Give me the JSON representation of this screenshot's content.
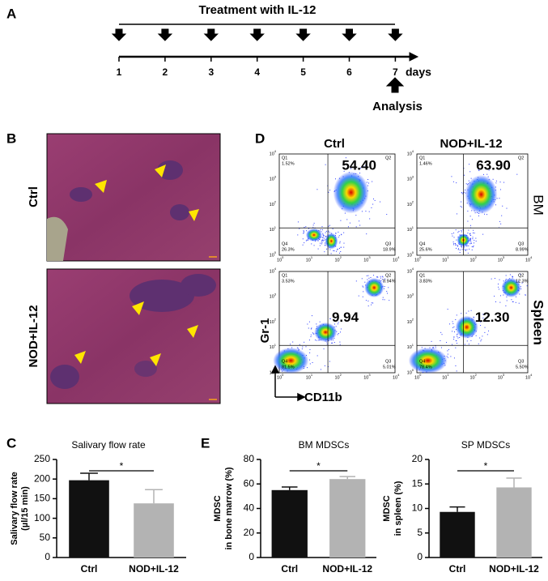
{
  "panel_labels": [
    "A",
    "B",
    "C",
    "D",
    "E"
  ],
  "timeline": {
    "title": "Treatment with IL-12",
    "days": [
      "1",
      "2",
      "3",
      "4",
      "5",
      "6",
      "7"
    ],
    "unit": "days",
    "analysis": "Analysis"
  },
  "histology": {
    "rows": [
      "Ctrl",
      "NOD+IL-12"
    ]
  },
  "flow": {
    "columns": [
      "Ctrl",
      "NOD+IL-12"
    ],
    "rows": [
      "BM",
      "Spleen"
    ],
    "y_label": "Gr-1",
    "x_label": "CD11b",
    "ticks": [
      {
        "base": "10",
        "exp": "0"
      },
      {
        "base": "10",
        "exp": "1"
      },
      {
        "base": "10",
        "exp": "2"
      },
      {
        "base": "10",
        "exp": "3"
      },
      {
        "base": "10",
        "exp": "4"
      }
    ],
    "plots": [
      {
        "main": "54.40",
        "quadrants": [
          {
            "q": "Q1",
            "pct": "1.52%"
          },
          {
            "q": "Q2"
          },
          {
            "q": "Q3",
            "pct": "18.9%"
          },
          {
            "q": "Q4",
            "pct": "26.3%"
          }
        ]
      },
      {
        "main": "63.90",
        "quadrants": [
          {
            "q": "Q1",
            "pct": "1.46%"
          },
          {
            "q": "Q2"
          },
          {
            "q": "Q3",
            "pct": "8.99%"
          },
          {
            "q": "Q4",
            "pct": "25.6%"
          }
        ]
      },
      {
        "main": "9.94",
        "quadrants": [
          {
            "q": "Q1",
            "pct": "3.53%"
          },
          {
            "q": "Q2",
            "pct": "9.94%"
          },
          {
            "q": "Q3",
            "pct": "5.01%"
          },
          {
            "q": "Q4",
            "pct": "81.5%"
          }
        ]
      },
      {
        "main": "12.30",
        "quadrants": [
          {
            "q": "Q1",
            "pct": "3.83%"
          },
          {
            "q": "Q2",
            "pct": "12.3%"
          },
          {
            "q": "Q3",
            "pct": "5.50%"
          },
          {
            "q": "Q4",
            "pct": "78.4%"
          }
        ]
      }
    ]
  },
  "chart_data": [
    {
      "type": "bar",
      "title": "Salivary flow rate",
      "y_label": [
        "Salivary flow rate",
        "(µl/15 min)"
      ],
      "categories": [
        "Ctrl",
        "NOD+IL-12"
      ],
      "values": [
        197,
        138
      ],
      "errors": [
        18,
        35
      ],
      "colors": [
        "#111111",
        "#b3b3b3"
      ],
      "ylim": [
        0,
        250
      ],
      "yticks": [
        0,
        50,
        100,
        150,
        200,
        250
      ],
      "significance": "*"
    },
    {
      "type": "bar",
      "title": "BM  MDSCs",
      "y_label": [
        "MDSC",
        "in bone marrow (%)"
      ],
      "categories": [
        "Ctrl",
        "NOD+IL-12"
      ],
      "values": [
        55,
        64
      ],
      "errors": [
        2.5,
        2
      ],
      "colors": [
        "#111111",
        "#b3b3b3"
      ],
      "ylim": [
        0,
        80
      ],
      "yticks": [
        0,
        20,
        40,
        60,
        80
      ],
      "significance": "*"
    },
    {
      "type": "bar",
      "title": "SP  MDSCs",
      "y_label": [
        "MDSC",
        "in spleen (%)"
      ],
      "categories": [
        "Ctrl",
        "NOD+IL-12"
      ],
      "values": [
        9.3,
        14.3
      ],
      "errors": [
        1,
        1.9
      ],
      "colors": [
        "#111111",
        "#b3b3b3"
      ],
      "ylim": [
        0,
        20
      ],
      "yticks": [
        0,
        5,
        10,
        15,
        20
      ],
      "significance": "*"
    }
  ]
}
